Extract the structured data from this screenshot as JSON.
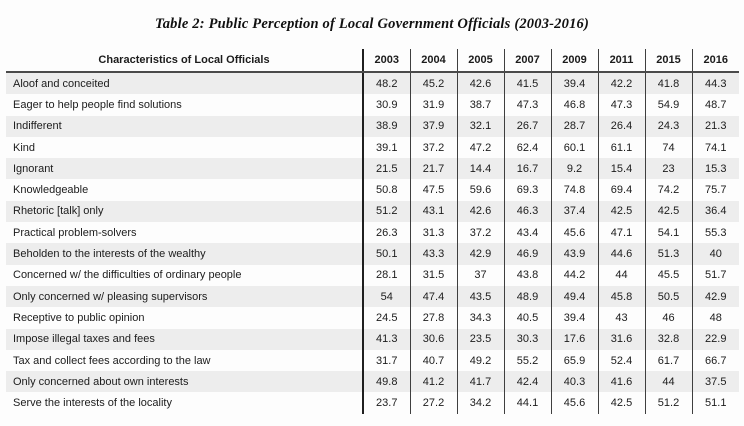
{
  "title": "Table 2: Public Perception of Local Government Officials (2003-2016)",
  "table": {
    "label_header": "Characteristics of Local Officials",
    "years": [
      "2003",
      "2004",
      "2005",
      "2007",
      "2009",
      "2011",
      "2015",
      "2016"
    ],
    "rows": [
      {
        "label": "Aloof and conceited",
        "values": [
          48.2,
          45.2,
          42.6,
          41.5,
          39.4,
          42.2,
          41.8,
          44.3
        ]
      },
      {
        "label": "Eager to help people find solutions",
        "values": [
          30.9,
          31.9,
          38.7,
          47.3,
          46.8,
          47.3,
          54.9,
          48.7
        ]
      },
      {
        "label": "Indifferent",
        "values": [
          38.9,
          37.9,
          32.1,
          26.7,
          28.7,
          26.4,
          24.3,
          21.3
        ]
      },
      {
        "label": "Kind",
        "values": [
          39.1,
          37.2,
          47.2,
          62.4,
          60.1,
          61.1,
          74,
          74.1
        ]
      },
      {
        "label": "Ignorant",
        "values": [
          21.5,
          21.7,
          14.4,
          16.7,
          9.2,
          15.4,
          23,
          15.3
        ]
      },
      {
        "label": "Knowledgeable",
        "values": [
          50.8,
          47.5,
          59.6,
          69.3,
          74.8,
          69.4,
          74.2,
          75.7
        ]
      },
      {
        "label": "Rhetoric [talk] only",
        "values": [
          51.2,
          43.1,
          42.6,
          46.3,
          37.4,
          42.5,
          42.5,
          36.4
        ]
      },
      {
        "label": "Practical problem-solvers",
        "values": [
          26.3,
          31.3,
          37.2,
          43.4,
          45.6,
          47.1,
          54.1,
          55.3
        ]
      },
      {
        "label": "Beholden to the interests of the wealthy",
        "values": [
          50.1,
          43.3,
          42.9,
          46.9,
          43.9,
          44.6,
          51.3,
          40
        ]
      },
      {
        "label": "Concerned w/ the difficulties of ordinary people",
        "values": [
          28.1,
          31.5,
          37,
          43.8,
          44.2,
          44,
          45.5,
          51.7
        ]
      },
      {
        "label": "Only concerned w/ pleasing supervisors",
        "values": [
          54,
          47.4,
          43.5,
          48.9,
          49.4,
          45.8,
          50.5,
          42.9
        ]
      },
      {
        "label": "Receptive to public opinion",
        "values": [
          24.5,
          27.8,
          34.3,
          40.5,
          39.4,
          43,
          46,
          48
        ]
      },
      {
        "label": "Impose illegal taxes and fees",
        "values": [
          41.3,
          30.6,
          23.5,
          30.3,
          17.6,
          31.6,
          32.8,
          22.9
        ]
      },
      {
        "label": "Tax and collect fees according to the law",
        "values": [
          31.7,
          40.7,
          49.2,
          55.2,
          65.9,
          52.4,
          61.7,
          66.7
        ]
      },
      {
        "label": "Only concerned about own interests",
        "values": [
          49.8,
          41.2,
          41.7,
          42.4,
          40.3,
          41.6,
          44,
          37.5
        ]
      },
      {
        "label": "Serve the interests of the locality",
        "values": [
          23.7,
          27.2,
          34.2,
          44.1,
          45.6,
          42.5,
          51.2,
          51.1
        ]
      }
    ]
  },
  "chart_data": {
    "type": "table",
    "title": "Table 2: Public Perception of Local Government Officials (2003-2016)",
    "columns": [
      "Characteristics of Local Officials",
      "2003",
      "2004",
      "2005",
      "2007",
      "2009",
      "2011",
      "2015",
      "2016"
    ],
    "categories": [
      "Aloof and conceited",
      "Eager to help people find solutions",
      "Indifferent",
      "Kind",
      "Ignorant",
      "Knowledgeable",
      "Rhetoric [talk] only",
      "Practical problem-solvers",
      "Beholden to the interests of the wealthy",
      "Concerned w/ the difficulties of ordinary people",
      "Only concerned w/ pleasing supervisors",
      "Receptive to public opinion",
      "Impose illegal taxes and fees",
      "Tax and collect fees according to the law",
      "Only concerned about own interests",
      "Serve the interests of the locality"
    ],
    "series": [
      {
        "name": "2003",
        "values": [
          48.2,
          30.9,
          38.9,
          39.1,
          21.5,
          50.8,
          51.2,
          26.3,
          50.1,
          28.1,
          54,
          24.5,
          41.3,
          31.7,
          49.8,
          23.7
        ]
      },
      {
        "name": "2004",
        "values": [
          45.2,
          31.9,
          37.9,
          37.2,
          21.7,
          47.5,
          43.1,
          31.3,
          43.3,
          31.5,
          47.4,
          27.8,
          30.6,
          40.7,
          41.2,
          27.2
        ]
      },
      {
        "name": "2005",
        "values": [
          42.6,
          38.7,
          32.1,
          47.2,
          14.4,
          59.6,
          42.6,
          37.2,
          42.9,
          37,
          43.5,
          34.3,
          23.5,
          49.2,
          41.7,
          34.2
        ]
      },
      {
        "name": "2007",
        "values": [
          41.5,
          47.3,
          26.7,
          62.4,
          16.7,
          69.3,
          46.3,
          43.4,
          46.9,
          43.8,
          48.9,
          40.5,
          30.3,
          55.2,
          42.4,
          44.1
        ]
      },
      {
        "name": "2009",
        "values": [
          39.4,
          46.8,
          28.7,
          60.1,
          9.2,
          74.8,
          37.4,
          45.6,
          43.9,
          44.2,
          49.4,
          39.4,
          17.6,
          65.9,
          40.3,
          45.6
        ]
      },
      {
        "name": "2011",
        "values": [
          42.2,
          47.3,
          26.4,
          61.1,
          15.4,
          69.4,
          42.5,
          47.1,
          44.6,
          44,
          45.8,
          43,
          31.6,
          52.4,
          41.6,
          42.5
        ]
      },
      {
        "name": "2015",
        "values": [
          41.8,
          54.9,
          24.3,
          74,
          23,
          74.2,
          42.5,
          54.1,
          51.3,
          45.5,
          50.5,
          46,
          32.8,
          61.7,
          44,
          51.2
        ]
      },
      {
        "name": "2016",
        "values": [
          44.3,
          48.7,
          21.3,
          74.1,
          15.3,
          75.7,
          36.4,
          55.3,
          40,
          51.7,
          42.9,
          48,
          22.9,
          66.7,
          37.5,
          51.1
        ]
      }
    ]
  },
  "colors": {
    "stripe": "#ededed",
    "rule": "#3f3f3f",
    "thick_rule": "#1f1f1f",
    "text": "#1c1c1c"
  }
}
